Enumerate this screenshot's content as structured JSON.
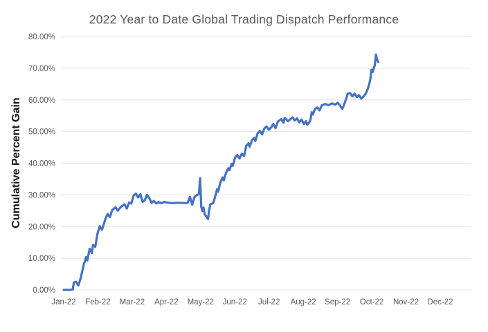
{
  "chart": {
    "title": "2022 Year to Date Global Trading Dispatch Performance",
    "y_axis_title": "Cumulative Percent Gain"
  },
  "chart_data": {
    "type": "line",
    "title": "2022 Year to Date Global Trading Dispatch Performance",
    "xlabel": "",
    "ylabel": "Cumulative Percent Gain",
    "ylim": [
      0,
      80
    ],
    "y_tick_step": 10,
    "y_tick_labels": [
      "0.00%",
      "10.00%",
      "20.00%",
      "30.00%",
      "40.00%",
      "50.00%",
      "60.00%",
      "70.00%",
      "80.00%"
    ],
    "x_tick_labels": [
      "Jan-22",
      "Feb-22",
      "Mar-22",
      "Apr-22",
      "May-22",
      "Jun-22",
      "Jul-22",
      "Aug-22",
      "Sep-22",
      "Oct-22",
      "Nov-22",
      "Dec-22"
    ],
    "x_range_days": [
      "2022-01-01",
      "2022-12-31"
    ],
    "grid": "horizontal-only",
    "legend": "none",
    "line_color": "#4472C4",
    "grid_color": "#E3E3E3",
    "axis_text_color": "#595959",
    "series": [
      {
        "name": "Cumulative Percent Gain",
        "units": "percent",
        "points": [
          [
            "2022-01-01",
            0.0
          ],
          [
            "2022-01-04",
            0.0
          ],
          [
            "2022-01-07",
            0.0
          ],
          [
            "2022-01-09",
            0.1
          ],
          [
            "2022-01-10",
            2.3
          ],
          [
            "2022-01-12",
            2.6
          ],
          [
            "2022-01-14",
            1.4
          ],
          [
            "2022-01-16",
            3.6
          ],
          [
            "2022-01-17",
            5.2
          ],
          [
            "2022-01-19",
            8.2
          ],
          [
            "2022-01-21",
            10.4
          ],
          [
            "2022-01-22",
            9.3
          ],
          [
            "2022-01-24",
            13.0
          ],
          [
            "2022-01-26",
            11.6
          ],
          [
            "2022-01-27",
            14.2
          ],
          [
            "2022-01-29",
            13.6
          ],
          [
            "2022-01-31",
            17.8
          ],
          [
            "2022-02-02",
            20.1
          ],
          [
            "2022-02-04",
            19.0
          ],
          [
            "2022-02-07",
            22.4
          ],
          [
            "2022-02-09",
            24.0
          ],
          [
            "2022-02-11",
            23.0
          ],
          [
            "2022-02-13",
            25.2
          ],
          [
            "2022-02-16",
            26.1
          ],
          [
            "2022-02-18",
            25.0
          ],
          [
            "2022-02-21",
            26.3
          ],
          [
            "2022-02-24",
            27.0
          ],
          [
            "2022-02-26",
            25.7
          ],
          [
            "2022-02-28",
            27.6
          ],
          [
            "2022-03-02",
            27.3
          ],
          [
            "2022-03-04",
            29.8
          ],
          [
            "2022-03-06",
            30.4
          ],
          [
            "2022-03-08",
            29.2
          ],
          [
            "2022-03-10",
            30.2
          ],
          [
            "2022-03-12",
            27.8
          ],
          [
            "2022-03-14",
            28.4
          ],
          [
            "2022-03-16",
            30.0
          ],
          [
            "2022-03-18",
            28.9
          ],
          [
            "2022-03-20",
            27.5
          ],
          [
            "2022-03-22",
            28.1
          ],
          [
            "2022-03-24",
            27.3
          ],
          [
            "2022-03-26",
            27.7
          ],
          [
            "2022-03-29",
            27.4
          ],
          [
            "2022-03-31",
            27.8
          ],
          [
            "2022-04-03",
            27.6
          ],
          [
            "2022-04-07",
            27.4
          ],
          [
            "2022-04-11",
            27.5
          ],
          [
            "2022-04-15",
            27.5
          ],
          [
            "2022-04-19",
            27.4
          ],
          [
            "2022-04-21",
            27.5
          ],
          [
            "2022-04-23",
            29.4
          ],
          [
            "2022-04-25",
            26.9
          ],
          [
            "2022-04-27",
            29.3
          ],
          [
            "2022-04-29",
            29.9
          ],
          [
            "2022-05-01",
            30.3
          ],
          [
            "2022-05-02",
            35.3
          ],
          [
            "2022-05-03",
            26.3
          ],
          [
            "2022-05-04",
            24.9
          ],
          [
            "2022-05-05",
            26.0
          ],
          [
            "2022-05-06",
            24.0
          ],
          [
            "2022-05-08",
            22.9
          ],
          [
            "2022-05-09",
            22.4
          ],
          [
            "2022-05-10",
            25.0
          ],
          [
            "2022-05-11",
            27.0
          ],
          [
            "2022-05-13",
            27.3
          ],
          [
            "2022-05-14",
            27.8
          ],
          [
            "2022-05-16",
            30.3
          ],
          [
            "2022-05-17",
            31.8
          ],
          [
            "2022-05-18",
            31.0
          ],
          [
            "2022-05-20",
            34.0
          ],
          [
            "2022-05-22",
            35.5
          ],
          [
            "2022-05-23",
            34.6
          ],
          [
            "2022-05-25",
            37.0
          ],
          [
            "2022-05-27",
            38.4
          ],
          [
            "2022-05-28",
            37.8
          ],
          [
            "2022-05-30",
            39.8
          ],
          [
            "2022-05-31",
            39.2
          ],
          [
            "2022-06-02",
            41.8
          ],
          [
            "2022-06-04",
            42.6
          ],
          [
            "2022-06-06",
            41.5
          ],
          [
            "2022-06-08",
            43.0
          ],
          [
            "2022-06-10",
            42.3
          ],
          [
            "2022-06-12",
            45.5
          ],
          [
            "2022-06-14",
            46.3
          ],
          [
            "2022-06-15",
            45.2
          ],
          [
            "2022-06-17",
            47.3
          ],
          [
            "2022-06-19",
            48.0
          ],
          [
            "2022-06-20",
            47.0
          ],
          [
            "2022-06-22",
            49.4
          ],
          [
            "2022-06-24",
            50.2
          ],
          [
            "2022-06-26",
            49.1
          ],
          [
            "2022-06-28",
            51.0
          ],
          [
            "2022-06-30",
            51.6
          ],
          [
            "2022-07-02",
            50.6
          ],
          [
            "2022-07-04",
            51.3
          ],
          [
            "2022-07-06",
            52.4
          ],
          [
            "2022-07-08",
            51.1
          ],
          [
            "2022-07-10",
            53.2
          ],
          [
            "2022-07-13",
            53.9
          ],
          [
            "2022-07-15",
            52.8
          ],
          [
            "2022-07-16",
            54.3
          ],
          [
            "2022-07-19",
            53.3
          ],
          [
            "2022-07-21",
            53.9
          ],
          [
            "2022-07-23",
            54.5
          ],
          [
            "2022-07-25",
            53.5
          ],
          [
            "2022-07-27",
            54.2
          ],
          [
            "2022-07-29",
            52.9
          ],
          [
            "2022-07-31",
            53.8
          ],
          [
            "2022-08-02",
            52.4
          ],
          [
            "2022-08-04",
            53.3
          ],
          [
            "2022-08-05",
            52.2
          ],
          [
            "2022-08-07",
            53.0
          ],
          [
            "2022-08-08",
            53.9
          ],
          [
            "2022-08-09",
            56.1
          ],
          [
            "2022-08-10",
            55.4
          ],
          [
            "2022-08-12",
            57.2
          ],
          [
            "2022-08-14",
            57.6
          ],
          [
            "2022-08-16",
            56.7
          ],
          [
            "2022-08-18",
            58.3
          ],
          [
            "2022-08-21",
            58.7
          ],
          [
            "2022-08-24",
            58.3
          ],
          [
            "2022-08-27",
            58.9
          ],
          [
            "2022-08-30",
            58.5
          ],
          [
            "2022-09-01",
            59.1
          ],
          [
            "2022-09-03",
            58.3
          ],
          [
            "2022-09-05",
            57.2
          ],
          [
            "2022-09-06",
            57.8
          ],
          [
            "2022-09-08",
            59.8
          ],
          [
            "2022-09-10",
            62.0
          ],
          [
            "2022-09-12",
            62.2
          ],
          [
            "2022-09-14",
            61.1
          ],
          [
            "2022-09-16",
            62.0
          ],
          [
            "2022-09-18",
            60.9
          ],
          [
            "2022-09-20",
            61.5
          ],
          [
            "2022-09-22",
            60.4
          ],
          [
            "2022-09-24",
            61.1
          ],
          [
            "2022-09-26",
            62.0
          ],
          [
            "2022-09-28",
            63.7
          ],
          [
            "2022-09-29",
            65.0
          ],
          [
            "2022-09-30",
            66.5
          ],
          [
            "2022-10-01",
            69.5
          ],
          [
            "2022-10-02",
            68.8
          ],
          [
            "2022-10-03",
            70.0
          ],
          [
            "2022-10-04",
            71.0
          ],
          [
            "2022-10-05",
            74.3
          ],
          [
            "2022-10-06",
            72.8
          ],
          [
            "2022-10-07",
            72.0
          ]
        ]
      }
    ]
  }
}
